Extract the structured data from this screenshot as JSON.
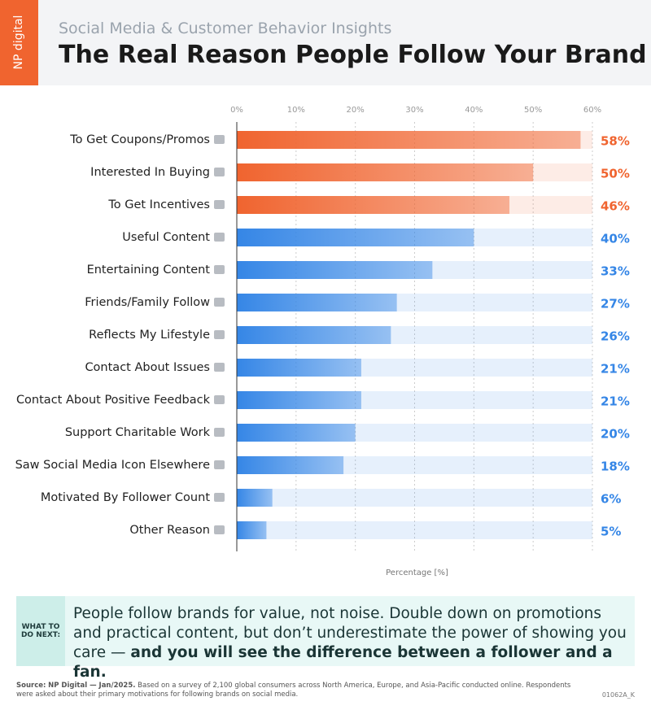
{
  "header": {
    "logo": "NP digital",
    "subtitle": "Social Media & Customer Behavior Insights",
    "title": "The Real Reason People Follow Your Brand"
  },
  "chart_data": {
    "type": "bar",
    "orientation": "horizontal",
    "categories": [
      "To Get Coupons/Promos",
      "Interested In Buying",
      "To Get Incentives",
      "Useful Content",
      "Entertaining Content",
      "Friends/Family Follow",
      "Reflects My Lifestyle",
      "Contact About Issues",
      "Contact About Positive Feedback",
      "Support Charitable Work",
      "Saw Social Media Icon Elsewhere",
      "Motivated By Follower Count",
      "Other Reason"
    ],
    "values": [
      58,
      50,
      46,
      40,
      33,
      27,
      26,
      21,
      21,
      20,
      18,
      6,
      5
    ],
    "value_labels": [
      "58%",
      "50%",
      "46%",
      "40%",
      "33%",
      "27%",
      "26%",
      "21%",
      "21%",
      "20%",
      "18%",
      "6%",
      "5%"
    ],
    "colors": [
      "#f0642f",
      "#f0642f",
      "#f0642f",
      "#3586e6",
      "#3586e6",
      "#3586e6",
      "#3586e6",
      "#3586e6",
      "#3586e6",
      "#3586e6",
      "#3586e6",
      "#3586e6",
      "#3586e6"
    ],
    "xlim": [
      0,
      60
    ],
    "xticks": [
      {
        "value": 0,
        "label": "0%"
      },
      {
        "value": 10,
        "label": "10%"
      },
      {
        "value": 20,
        "label": "20%"
      },
      {
        "value": 30,
        "label": "30%"
      },
      {
        "value": 40,
        "label": "40%"
      },
      {
        "value": 50,
        "label": "50%"
      },
      {
        "value": 60,
        "label": "60%"
      }
    ],
    "xlabel": "Percentage [%]",
    "grid": true
  },
  "callout": {
    "label": "WHAT TO DO NEXT:",
    "text": "People follow brands for value, not noise. Double down on promotions and practical content, but don’t underestimate the power of showing you care —",
    "emphasis": "and you will see the difference between a follower and a fan."
  },
  "footer": {
    "source_label": "Source:",
    "source": "NP Digital — Jan/2025.",
    "note": "Based on a survey of 2,100 global consumers across North America, Europe, and Asia-Pacific conducted online. Respondents were asked about their primary motivations for following brands on social media.",
    "code": "01062A_K"
  }
}
